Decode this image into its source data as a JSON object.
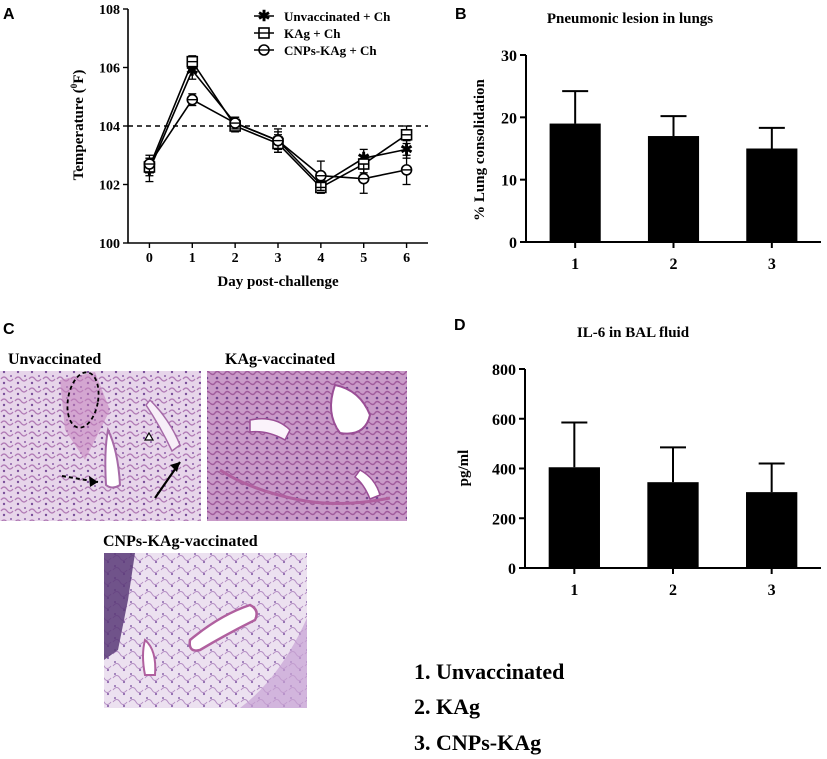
{
  "panels": {
    "a": "A",
    "b": "B",
    "c": "C",
    "d": "D"
  },
  "chart_data": [
    {
      "type": "line",
      "panel": "A",
      "title": "",
      "xlabel": "Day post-challenge",
      "ylabel": "Temperature (0F)",
      "x": [
        0,
        1,
        2,
        3,
        4,
        5,
        6
      ],
      "xlim": [
        -0.5,
        6.5
      ],
      "ylim": [
        100,
        108
      ],
      "yticks": [
        100,
        102,
        104,
        106,
        108
      ],
      "reference_line": 104,
      "legend_position": "top-right",
      "series": [
        {
          "name": "Unvaccinated + Ch",
          "marker": "star",
          "values": [
            102.5,
            105.9,
            104.1,
            103.5,
            102.0,
            102.9,
            103.2
          ],
          "err": [
            0.4,
            0.3,
            0.2,
            0.3,
            0.2,
            0.3,
            0.3
          ]
        },
        {
          "name": "KAg + Ch",
          "marker": "square",
          "values": [
            102.6,
            106.2,
            104.0,
            103.4,
            101.9,
            102.7,
            103.7
          ],
          "err": [
            0.3,
            0.2,
            0.2,
            0.3,
            0.2,
            0.3,
            0.3
          ]
        },
        {
          "name": "CNPs-KAg + Ch",
          "marker": "circle",
          "values": [
            102.7,
            104.9,
            104.1,
            103.5,
            102.3,
            102.2,
            102.5
          ],
          "err": [
            0.3,
            0.2,
            0.2,
            0.4,
            0.5,
            0.5,
            0.5
          ]
        }
      ]
    },
    {
      "type": "bar",
      "panel": "B",
      "title": "Pneumonic lesion in lungs",
      "xlabel": "",
      "ylabel": "% Lung consolidation",
      "categories": [
        "1",
        "2",
        "3"
      ],
      "values": [
        19,
        17,
        15
      ],
      "err": [
        5.2,
        3.2,
        3.3
      ],
      "ylim": [
        0,
        30
      ],
      "yticks": [
        0,
        10,
        20,
        30
      ]
    },
    {
      "type": "bar",
      "panel": "D",
      "title": "IL-6 in BAL fluid",
      "xlabel": "",
      "ylabel": "pg/ml",
      "categories": [
        "1",
        "2",
        "3"
      ],
      "values": [
        405,
        345,
        305
      ],
      "err": [
        180,
        140,
        115
      ],
      "ylim": [
        0,
        800
      ],
      "yticks": [
        0,
        200,
        400,
        600,
        800
      ]
    }
  ],
  "histology": {
    "unvaccinated": "Unvaccinated",
    "kag": "KAg-vaccinated",
    "cnps": "CNPs-KAg-vaccinated"
  },
  "key": [
    "1. Unvaccinated",
    "2. KAg",
    "3. CNPs-KAg"
  ]
}
